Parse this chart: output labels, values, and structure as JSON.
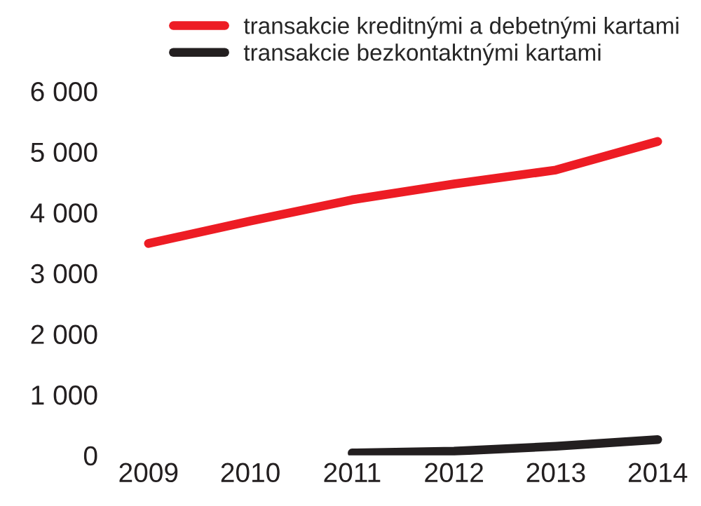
{
  "chart_data": {
    "type": "line",
    "categories": [
      "2009",
      "2010",
      "2011",
      "2012",
      "2013",
      "2014"
    ],
    "series": [
      {
        "name": "transakcie kreditnými a debetnými kartami",
        "color": "#ed1c24",
        "values": [
          3490,
          3860,
          4210,
          4470,
          4700,
          5170
        ]
      },
      {
        "name": "transakcie bezkontaktnými kartami",
        "color": "#231f20",
        "values": [
          null,
          null,
          40,
          70,
          150,
          260
        ]
      }
    ],
    "ylim": [
      0,
      6000
    ],
    "yticks": [
      {
        "value": 0,
        "label": "0"
      },
      {
        "value": 1000,
        "label": "1 000"
      },
      {
        "value": 2000,
        "label": "2 000"
      },
      {
        "value": 3000,
        "label": "3 000"
      },
      {
        "value": 4000,
        "label": "4 000"
      },
      {
        "value": 5000,
        "label": "5 000"
      },
      {
        "value": 6000,
        "label": "6 000"
      }
    ],
    "grid": false,
    "legend": "top",
    "marker": "none",
    "line_style": "solid"
  }
}
